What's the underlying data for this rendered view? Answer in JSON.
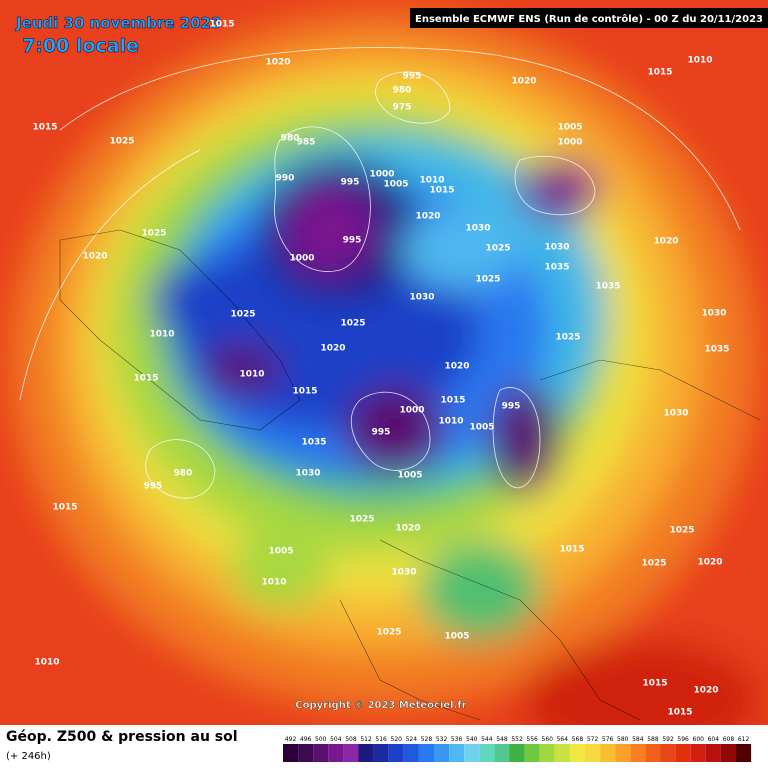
{
  "header": {
    "date": "Jeudi 30 novembre 2023",
    "time": "7:00 locale",
    "run": "Ensemble ECMWF ENS  (Run de contrôle)  -  00 Z du 20/11/2023"
  },
  "copyright": "Copyright © 2023 Meteociel.fr",
  "footer": {
    "title": "Géop. Z500 & pression au sol",
    "lead": "(+ 246h)"
  },
  "pressure_labels": [
    1015,
    1010,
    1015,
    1020,
    995,
    980,
    975,
    1020,
    1015,
    1025,
    1005,
    1000,
    980,
    985,
    990,
    995,
    1000,
    1005,
    1010,
    1015,
    1020,
    1030,
    1025,
    1030,
    1035,
    1020,
    1025,
    1020,
    995,
    1000,
    1030,
    1025,
    1035,
    1025,
    1025,
    1010,
    1020,
    1020,
    1010,
    1015,
    1025,
    1015,
    1000,
    995,
    995,
    1015,
    1010,
    1005,
    1035,
    1030,
    1005,
    980,
    995,
    1015,
    1025,
    1020,
    1005,
    1010,
    1030,
    1015,
    1025,
    1020,
    1025,
    1005,
    1010,
    1015,
    1020,
    1030,
    1030,
    1035,
    1025,
    1015
  ],
  "scale": {
    "labels": [
      492,
      496,
      500,
      504,
      508,
      512,
      516,
      520,
      524,
      528,
      532,
      536,
      540,
      544,
      548,
      552,
      556,
      560,
      564,
      568,
      572,
      576,
      580,
      584,
      588,
      592,
      596,
      600,
      604,
      608,
      612
    ],
    "colors": [
      "#2a0038",
      "#3c0a50",
      "#5a1070",
      "#7a1890",
      "#8c28a8",
      "#1a1a80",
      "#1a2aa0",
      "#1c40c8",
      "#2058e0",
      "#2a78f0",
      "#3a98f0",
      "#50b8f0",
      "#70d0f0",
      "#60d8c0",
      "#50c890",
      "#40b040",
      "#70c840",
      "#a0d840",
      "#c8e040",
      "#f0e840",
      "#f8d840",
      "#f8c030",
      "#f8a028",
      "#f88020",
      "#f06018",
      "#e84818",
      "#e03010",
      "#d02010",
      "#b81010",
      "#900808",
      "#500000"
    ]
  }
}
